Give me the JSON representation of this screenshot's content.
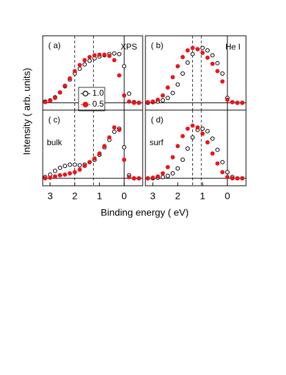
{
  "figure": {
    "xlabel": "Binding energy ( eV)",
    "ylabel": "Intensity ( arb. units)"
  },
  "chart_data": [
    {
      "type": "scatter",
      "label": "( a)",
      "text": "XPS",
      "legend": "center-left",
      "xlim": [
        3.3,
        -0.75
      ],
      "ylim": [
        -0.12,
        1.1
      ],
      "hline": 0,
      "vline": 0,
      "dashed_lines": [
        2.0,
        1.25
      ],
      "x": [
        3.2,
        3.0,
        2.8,
        2.6,
        2.4,
        2.2,
        2.0,
        1.8,
        1.6,
        1.4,
        1.2,
        1.0,
        0.8,
        0.6,
        0.4,
        0.2,
        0.0,
        -0.2,
        -0.4,
        -0.6
      ],
      "series": [
        {
          "name": "1.0",
          "color": "#000000",
          "values": [
            0.02,
            0.04,
            0.09,
            0.17,
            0.27,
            0.38,
            0.48,
            0.56,
            0.63,
            0.69,
            0.73,
            0.76,
            0.78,
            0.8,
            0.81,
            0.8,
            0.6,
            0.15,
            0.01,
            0.0
          ]
        },
        {
          "name": "0.5",
          "color": "#e8161b",
          "values": [
            0.01,
            0.03,
            0.08,
            0.17,
            0.28,
            0.4,
            0.52,
            0.62,
            0.7,
            0.75,
            0.78,
            0.79,
            0.79,
            0.77,
            0.7,
            0.45,
            0.12,
            0.02,
            0.0,
            0.0
          ]
        }
      ]
    },
    {
      "type": "scatter",
      "label": "( b)",
      "text": "He I",
      "xlim": [
        3.3,
        -0.75
      ],
      "ylim": [
        -0.12,
        1.1
      ],
      "hline": 0,
      "vline": 0,
      "dashed_lines": [
        1.4,
        1.05
      ],
      "x": [
        3.2,
        3.0,
        2.8,
        2.6,
        2.4,
        2.2,
        2.0,
        1.8,
        1.6,
        1.4,
        1.2,
        1.0,
        0.8,
        0.6,
        0.4,
        0.2,
        0.0,
        -0.2,
        -0.4,
        -0.6
      ],
      "series": [
        {
          "color": "#000000",
          "values": [
            0.0,
            0.01,
            0.02,
            0.04,
            0.08,
            0.16,
            0.3,
            0.48,
            0.66,
            0.8,
            0.88,
            0.9,
            0.86,
            0.78,
            0.65,
            0.48,
            0.08,
            0.01,
            0.0,
            0.0
          ]
        },
        {
          "color": "#e8161b",
          "values": [
            0.01,
            0.02,
            0.05,
            0.12,
            0.25,
            0.42,
            0.6,
            0.75,
            0.86,
            0.9,
            0.88,
            0.82,
            0.74,
            0.64,
            0.52,
            0.35,
            0.05,
            0.01,
            0.0,
            0.0
          ]
        }
      ]
    },
    {
      "type": "scatter",
      "label": "( c)",
      "text": "bulk",
      "xlim": [
        3.3,
        -0.75
      ],
      "ylim": [
        -0.12,
        1.1
      ],
      "hline": 0,
      "vline": 0,
      "dashed_lines": [
        2.0,
        1.25
      ],
      "xticks": [
        3,
        2,
        1,
        0
      ],
      "x": [
        3.2,
        3.0,
        2.8,
        2.6,
        2.4,
        2.2,
        2.0,
        1.8,
        1.6,
        1.4,
        1.2,
        1.0,
        0.8,
        0.6,
        0.4,
        0.2,
        0.0,
        -0.2,
        -0.4,
        -0.6
      ],
      "series": [
        {
          "color": "#000000",
          "values": [
            0.02,
            0.06,
            0.12,
            0.17,
            0.2,
            0.22,
            0.22,
            0.21,
            0.22,
            0.26,
            0.3,
            0.38,
            0.5,
            0.62,
            0.75,
            0.8,
            0.5,
            0.05,
            0.0,
            0.0
          ]
        },
        {
          "color": "#e8161b",
          "values": [
            0.0,
            0.01,
            0.03,
            0.05,
            0.06,
            0.08,
            0.1,
            0.14,
            0.2,
            0.26,
            0.32,
            0.4,
            0.52,
            0.66,
            0.82,
            0.78,
            0.3,
            0.02,
            0.0,
            0.0
          ]
        }
      ]
    },
    {
      "type": "scatter",
      "label": "( d)",
      "text": "surf",
      "xlim": [
        3.3,
        -0.75
      ],
      "ylim": [
        -0.12,
        1.1
      ],
      "hline": 0,
      "vline": 0,
      "dashed_lines": [
        1.4,
        1.05
      ],
      "xticks": [
        3,
        2,
        1,
        0
      ],
      "x": [
        3.2,
        3.0,
        2.8,
        2.6,
        2.4,
        2.2,
        2.0,
        1.8,
        1.6,
        1.4,
        1.2,
        1.0,
        0.8,
        0.6,
        0.4,
        0.2,
        0.0,
        -0.2,
        -0.4,
        -0.6
      ],
      "series": [
        {
          "color": "#000000",
          "values": [
            0.0,
            0.0,
            0.01,
            0.02,
            0.04,
            0.08,
            0.16,
            0.3,
            0.48,
            0.66,
            0.78,
            0.8,
            0.76,
            0.64,
            0.46,
            0.26,
            0.1,
            0.02,
            0.0,
            0.0
          ]
        },
        {
          "color": "#e8161b",
          "values": [
            0.0,
            0.01,
            0.03,
            0.08,
            0.18,
            0.34,
            0.52,
            0.68,
            0.8,
            0.85,
            0.82,
            0.72,
            0.58,
            0.4,
            0.24,
            0.1,
            0.02,
            0.0,
            0.0,
            0.0
          ]
        }
      ]
    }
  ]
}
